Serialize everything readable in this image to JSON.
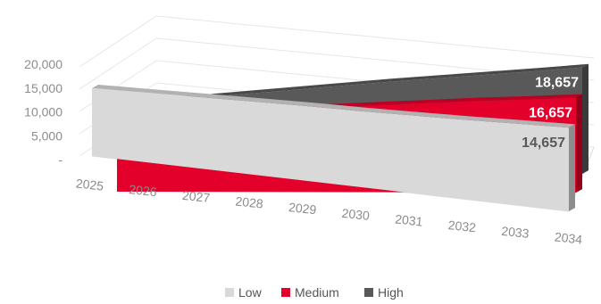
{
  "chart_data": {
    "type": "area",
    "view": "3d",
    "categories": [
      "2025",
      "2026",
      "2027",
      "2028",
      "2029",
      "2030",
      "2031",
      "2032",
      "2033",
      "2034"
    ],
    "y_ticks": [
      "-",
      "5,000",
      "10,000",
      "15,000",
      "20,000"
    ],
    "ylim": [
      0,
      20000
    ],
    "series": [
      {
        "name": "Low",
        "color": "#d9d9d9",
        "values": [
          11900,
          12200,
          12500,
          12800,
          13100,
          13300,
          13600,
          13900,
          14300,
          14657
        ],
        "end_label": "14,657"
      },
      {
        "name": "Medium",
        "color": "#e3002b",
        "values": [
          13200,
          13600,
          14000,
          14400,
          14800,
          15200,
          15600,
          16000,
          16300,
          16657
        ],
        "end_label": "16,657"
      },
      {
        "name": "High",
        "color": "#595959",
        "values": [
          14500,
          15000,
          15500,
          16000,
          16500,
          17000,
          17400,
          17800,
          18200,
          18657
        ],
        "end_label": "18,657"
      }
    ],
    "grid": true,
    "legend_position": "bottom"
  }
}
